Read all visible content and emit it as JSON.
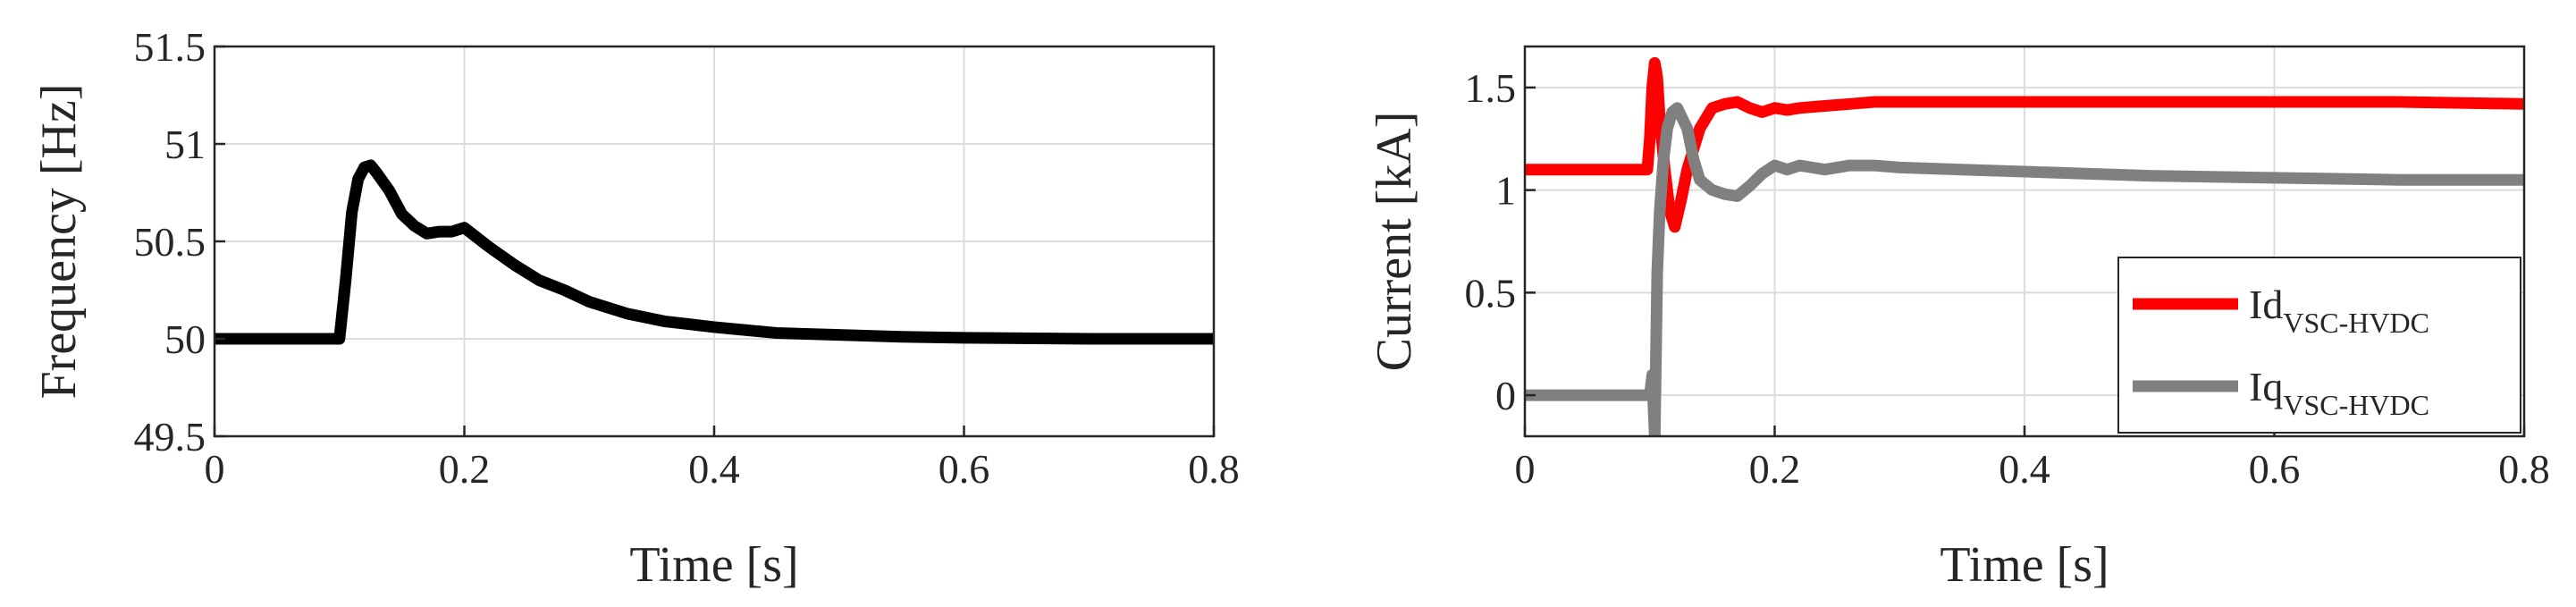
{
  "chart_data": [
    {
      "type": "line",
      "xlabel": "Time [s]",
      "ylabel": "Frequency [Hz]",
      "xlim": [
        0,
        0.8
      ],
      "ylim": [
        49.5,
        51.5
      ],
      "xticks": [
        "0",
        "0.2",
        "0.4",
        "0.6",
        "0.8"
      ],
      "yticks": [
        "49.5",
        "50",
        "50.5",
        "51",
        "51.5"
      ],
      "grid": true,
      "series": [
        {
          "color": "#000000",
          "x": [
            0,
            0.1,
            0.105,
            0.11,
            0.115,
            0.12,
            0.125,
            0.13,
            0.14,
            0.15,
            0.16,
            0.17,
            0.18,
            0.19,
            0.2,
            0.21,
            0.22,
            0.24,
            0.26,
            0.28,
            0.3,
            0.33,
            0.36,
            0.4,
            0.45,
            0.5,
            0.55,
            0.6,
            0.7,
            0.8
          ],
          "y": [
            50,
            50,
            50.3,
            50.65,
            50.82,
            50.88,
            50.89,
            50.85,
            50.76,
            50.64,
            50.58,
            50.54,
            50.55,
            50.55,
            50.57,
            50.52,
            50.47,
            50.38,
            50.3,
            50.25,
            50.19,
            50.13,
            50.09,
            50.06,
            50.03,
            50.02,
            50.01,
            50.005,
            50,
            50
          ]
        }
      ]
    },
    {
      "type": "line",
      "xlabel": "Time [s]",
      "ylabel": "Current [kA]",
      "xlim": [
        0,
        0.8
      ],
      "ylim": [
        -0.2,
        1.7
      ],
      "xticks": [
        "0",
        "0.2",
        "0.4",
        "0.6",
        "0.8"
      ],
      "yticks": [
        "0",
        "0.5",
        "1",
        "1.5"
      ],
      "grid": true,
      "legend": "bottom-right",
      "series": [
        {
          "name": "Id",
          "name_sub": "VSC-HVDC",
          "color": "#ff0000",
          "x": [
            0,
            0.098,
            0.1,
            0.102,
            0.104,
            0.106,
            0.108,
            0.112,
            0.116,
            0.12,
            0.125,
            0.13,
            0.14,
            0.15,
            0.16,
            0.17,
            0.18,
            0.19,
            0.2,
            0.21,
            0.22,
            0.24,
            0.26,
            0.28,
            0.3,
            0.35,
            0.4,
            0.5,
            0.6,
            0.7,
            0.8
          ],
          "y": [
            1.1,
            1.1,
            1.25,
            1.5,
            1.62,
            1.55,
            1.35,
            1.1,
            0.9,
            0.82,
            0.95,
            1.1,
            1.3,
            1.4,
            1.42,
            1.43,
            1.4,
            1.38,
            1.4,
            1.39,
            1.4,
            1.41,
            1.42,
            1.43,
            1.43,
            1.43,
            1.43,
            1.43,
            1.43,
            1.43,
            1.42
          ]
        },
        {
          "name": "Iq",
          "name_sub": "VSC-HVDC",
          "color": "#808080",
          "x": [
            0,
            0.1,
            0.102,
            0.104,
            0.105,
            0.106,
            0.108,
            0.111,
            0.114,
            0.118,
            0.122,
            0.126,
            0.13,
            0.135,
            0.14,
            0.15,
            0.16,
            0.17,
            0.18,
            0.19,
            0.2,
            0.21,
            0.22,
            0.24,
            0.26,
            0.28,
            0.3,
            0.35,
            0.4,
            0.5,
            0.6,
            0.7,
            0.8
          ],
          "y": [
            0,
            0,
            0.1,
            -0.2,
            0.2,
            0.6,
            0.9,
            1.15,
            1.3,
            1.38,
            1.4,
            1.35,
            1.3,
            1.15,
            1.05,
            1.0,
            0.98,
            0.97,
            1.02,
            1.08,
            1.12,
            1.1,
            1.12,
            1.1,
            1.12,
            1.12,
            1.11,
            1.1,
            1.09,
            1.07,
            1.06,
            1.05,
            1.05
          ]
        }
      ]
    }
  ]
}
